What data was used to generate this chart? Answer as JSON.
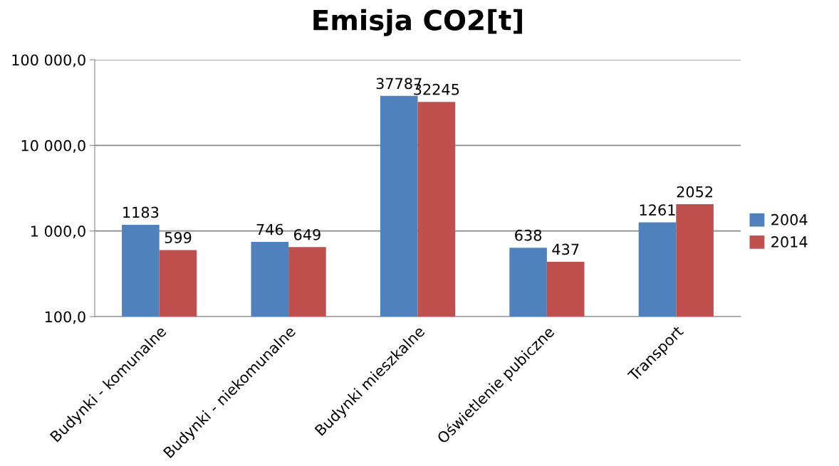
{
  "chart_data": {
    "type": "bar",
    "title": "Emisja CO2[t]",
    "categories": [
      "Budynki - komunalne",
      "Budynki - niekomunalne",
      "Budynki mieszkalne",
      "Oświetlenie pubiczne",
      "Transport"
    ],
    "series": [
      {
        "name": "2004",
        "color": "#4f81bd",
        "values": [
          1183,
          746,
          37787,
          638,
          1261
        ]
      },
      {
        "name": "2014",
        "color": "#c0504d",
        "values": [
          599,
          649,
          32245,
          437,
          2052
        ]
      }
    ],
    "log": "y",
    "ylim": [
      100,
      100000
    ],
    "yticks": [
      {
        "value": 100,
        "label": "100,0"
      },
      {
        "value": 1000,
        "label": "1 000,0"
      },
      {
        "value": 10000,
        "label": "10 000,0"
      },
      {
        "value": 100000,
        "label": "100 000,0"
      }
    ],
    "grid": "y",
    "legend": "right",
    "data_labels": true
  }
}
